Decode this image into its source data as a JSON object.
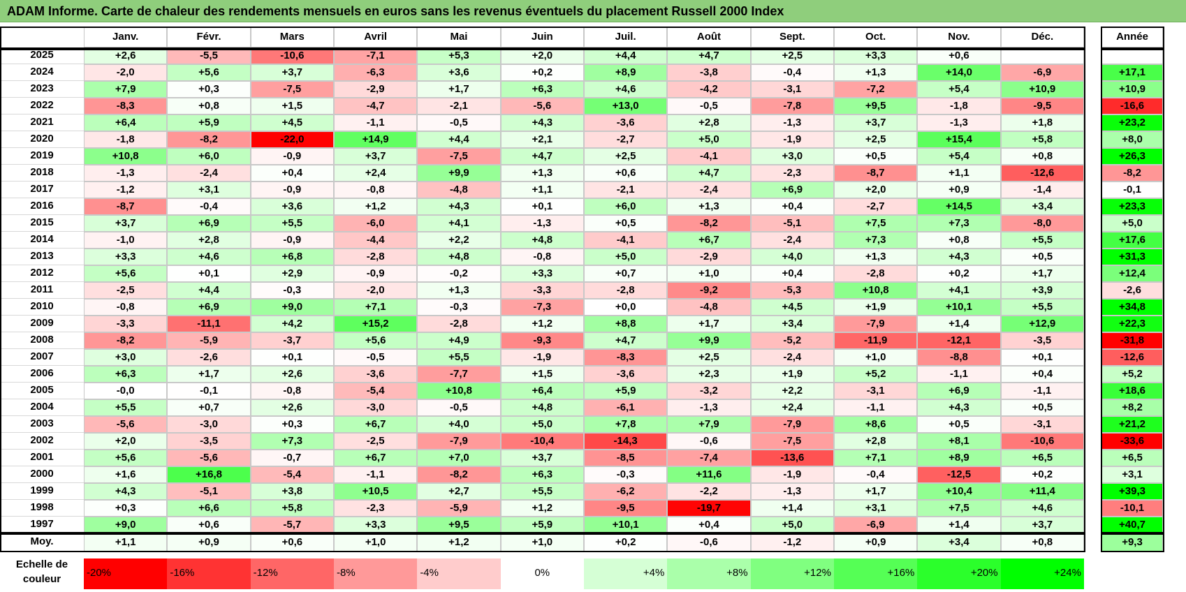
{
  "title": "ADAM Informe. Carte de chaleur des rendements mensuels en euros sans les revenus éventuels du placement Russell 2000 Index",
  "chart_data": {
    "type": "heatmap",
    "title": "ADAM Informe. Carte de chaleur des rendements mensuels en euros sans les revenus éventuels du placement Russell 2000 Index",
    "months": [
      "Janv.",
      "Févr.",
      "Mars",
      "Avril",
      "Mai",
      "Juin",
      "Juil.",
      "Août",
      "Sept.",
      "Oct.",
      "Nov.",
      "Déc."
    ],
    "year_header": "Année",
    "rows": [
      {
        "year": "2025",
        "months": [
          "+2,6",
          "-5,5",
          "-10,6",
          "-7,1",
          "+5,3",
          "+2,0",
          "+4,4",
          "+4,7",
          "+2,5",
          "+3,3",
          "+0,6",
          ""
        ],
        "annual": ""
      },
      {
        "year": "2024",
        "months": [
          "-2,0",
          "+5,6",
          "+3,7",
          "-6,3",
          "+3,6",
          "+0,2",
          "+8,9",
          "-3,8",
          "-0,4",
          "+1,3",
          "+14,0",
          "-6,9"
        ],
        "annual": "+17,1"
      },
      {
        "year": "2023",
        "months": [
          "+7,9",
          "+0,3",
          "-7,5",
          "-2,9",
          "+1,7",
          "+6,3",
          "+4,6",
          "-4,2",
          "-3,1",
          "-7,2",
          "+5,4",
          "+10,9"
        ],
        "annual": "+10,9"
      },
      {
        "year": "2022",
        "months": [
          "-8,3",
          "+0,8",
          "+1,5",
          "-4,7",
          "-2,1",
          "-5,6",
          "+13,0",
          "-0,5",
          "-7,8",
          "+9,5",
          "-1,8",
          "-9,5"
        ],
        "annual": "-16,6"
      },
      {
        "year": "2021",
        "months": [
          "+6,4",
          "+5,9",
          "+4,5",
          "-1,1",
          "-0,5",
          "+4,3",
          "-3,6",
          "+2,8",
          "-1,3",
          "+3,7",
          "-1,3",
          "+1,8"
        ],
        "annual": "+23,2"
      },
      {
        "year": "2020",
        "months": [
          "-1,8",
          "-8,2",
          "-22,0",
          "+14,9",
          "+4,4",
          "+2,1",
          "-2,7",
          "+5,0",
          "-1,9",
          "+2,5",
          "+15,4",
          "+5,8"
        ],
        "annual": "+8,0"
      },
      {
        "year": "2019",
        "months": [
          "+10,8",
          "+6,0",
          "-0,9",
          "+3,7",
          "-7,5",
          "+4,7",
          "+2,5",
          "-4,1",
          "+3,0",
          "+0,5",
          "+5,4",
          "+0,8"
        ],
        "annual": "+26,3"
      },
      {
        "year": "2018",
        "months": [
          "-1,3",
          "-2,4",
          "+0,4",
          "+2,4",
          "+9,9",
          "+1,3",
          "+0,6",
          "+4,7",
          "-2,3",
          "-8,7",
          "+1,1",
          "-12,6"
        ],
        "annual": "-8,2"
      },
      {
        "year": "2017",
        "months": [
          "-1,2",
          "+3,1",
          "-0,9",
          "-0,8",
          "-4,8",
          "+1,1",
          "-2,1",
          "-2,4",
          "+6,9",
          "+2,0",
          "+0,9",
          "-1,4"
        ],
        "annual": "-0,1"
      },
      {
        "year": "2016",
        "months": [
          "-8,7",
          "-0,4",
          "+3,6",
          "+1,2",
          "+4,3",
          "+0,1",
          "+6,0",
          "+1,3",
          "+0,4",
          "-2,7",
          "+14,5",
          "+3,4"
        ],
        "annual": "+23,3"
      },
      {
        "year": "2015",
        "months": [
          "+3,7",
          "+6,9",
          "+5,5",
          "-6,0",
          "+4,1",
          "-1,3",
          "+0,5",
          "-8,2",
          "-5,1",
          "+7,5",
          "+7,3",
          "-8,0"
        ],
        "annual": "+5,0"
      },
      {
        "year": "2014",
        "months": [
          "-1,0",
          "+2,8",
          "-0,9",
          "-4,4",
          "+2,2",
          "+4,8",
          "-4,1",
          "+6,7",
          "-2,4",
          "+7,3",
          "+0,8",
          "+5,5"
        ],
        "annual": "+17,6"
      },
      {
        "year": "2013",
        "months": [
          "+3,3",
          "+4,6",
          "+6,8",
          "-2,8",
          "+4,8",
          "-0,8",
          "+5,0",
          "-2,9",
          "+4,0",
          "+1,3",
          "+4,3",
          "+0,5"
        ],
        "annual": "+31,3"
      },
      {
        "year": "2012",
        "months": [
          "+5,6",
          "+0,1",
          "+2,9",
          "-0,9",
          "-0,2",
          "+3,3",
          "+0,7",
          "+1,0",
          "+0,4",
          "-2,8",
          "+0,2",
          "+1,7"
        ],
        "annual": "+12,4"
      },
      {
        "year": "2011",
        "months": [
          "-2,5",
          "+4,4",
          "-0,3",
          "-2,0",
          "+1,3",
          "-3,3",
          "-2,8",
          "-9,2",
          "-5,3",
          "+10,8",
          "+4,1",
          "+3,9"
        ],
        "annual": "-2,6"
      },
      {
        "year": "2010",
        "months": [
          "-0,8",
          "+6,9",
          "+9,0",
          "+7,1",
          "-0,3",
          "-7,3",
          "+0,0",
          "-4,8",
          "+4,5",
          "+1,9",
          "+10,1",
          "+5,5"
        ],
        "annual": "+34,8"
      },
      {
        "year": "2009",
        "months": [
          "-3,3",
          "-11,1",
          "+4,2",
          "+15,2",
          "-2,8",
          "+1,2",
          "+8,8",
          "+1,7",
          "+3,4",
          "-7,9",
          "+1,4",
          "+12,9"
        ],
        "annual": "+22,3"
      },
      {
        "year": "2008",
        "months": [
          "-8,2",
          "-5,9",
          "-3,7",
          "+5,6",
          "+4,9",
          "-9,3",
          "+4,7",
          "+9,9",
          "-5,2",
          "-11,9",
          "-12,1",
          "-3,5"
        ],
        "annual": "-31,8"
      },
      {
        "year": "2007",
        "months": [
          "+3,0",
          "-2,6",
          "+0,1",
          "-0,5",
          "+5,5",
          "-1,9",
          "-8,3",
          "+2,5",
          "-2,4",
          "+1,0",
          "-8,8",
          "+0,1"
        ],
        "annual": "-12,6"
      },
      {
        "year": "2006",
        "months": [
          "+6,3",
          "+1,7",
          "+2,6",
          "-3,6",
          "-7,7",
          "+1,5",
          "-3,6",
          "+2,3",
          "+1,9",
          "+5,2",
          "-1,1",
          "+0,4"
        ],
        "annual": "+5,2"
      },
      {
        "year": "2005",
        "months": [
          "-0,0",
          "-0,1",
          "-0,8",
          "-5,4",
          "+10,8",
          "+6,4",
          "+5,9",
          "-3,2",
          "+2,2",
          "-3,1",
          "+6,9",
          "-1,1"
        ],
        "annual": "+18,6"
      },
      {
        "year": "2004",
        "months": [
          "+5,5",
          "+0,7",
          "+2,6",
          "-3,0",
          "-0,5",
          "+4,8",
          "-6,1",
          "-1,3",
          "+2,4",
          "-1,1",
          "+4,3",
          "+0,5"
        ],
        "annual": "+8,2"
      },
      {
        "year": "2003",
        "months": [
          "-5,6",
          "-3,0",
          "+0,3",
          "+6,7",
          "+4,0",
          "+5,0",
          "+7,8",
          "+7,9",
          "-7,9",
          "+8,6",
          "+0,5",
          "-3,1"
        ],
        "annual": "+21,2"
      },
      {
        "year": "2002",
        "months": [
          "+2,0",
          "-3,5",
          "+7,3",
          "-2,5",
          "-7,9",
          "-10,4",
          "-14,3",
          "-0,6",
          "-7,5",
          "+2,8",
          "+8,1",
          "-10,6"
        ],
        "annual": "-33,6"
      },
      {
        "year": "2001",
        "months": [
          "+5,6",
          "-5,6",
          "-0,7",
          "+6,7",
          "+7,0",
          "+3,7",
          "-8,5",
          "-7,4",
          "-13,6",
          "+7,1",
          "+8,9",
          "+6,5"
        ],
        "annual": "+6,5"
      },
      {
        "year": "2000",
        "months": [
          "+1,6",
          "+16,8",
          "-5,4",
          "-1,1",
          "-8,2",
          "+6,3",
          "-0,3",
          "+11,6",
          "-1,9",
          "-0,4",
          "-12,5",
          "+0,2"
        ],
        "annual": "+3,1"
      },
      {
        "year": "1999",
        "months": [
          "+4,3",
          "-5,1",
          "+3,8",
          "+10,5",
          "+2,7",
          "+5,5",
          "-6,2",
          "-2,2",
          "-1,3",
          "+1,7",
          "+10,4",
          "+11,4"
        ],
        "annual": "+39,3"
      },
      {
        "year": "1998",
        "months": [
          "+0,3",
          "+6,6",
          "+5,8",
          "-2,3",
          "-5,9",
          "+1,2",
          "-9,5",
          "-19,7",
          "+1,4",
          "+3,1",
          "+7,5",
          "+4,6"
        ],
        "annual": "-10,1"
      },
      {
        "year": "1997",
        "months": [
          "+9,0",
          "+0,6",
          "-5,7",
          "+3,3",
          "+9,5",
          "+5,9",
          "+10,1",
          "+0,4",
          "+5,0",
          "-6,9",
          "+1,4",
          "+3,7"
        ],
        "annual": "+40,7"
      }
    ],
    "average": {
      "label": "Moy.",
      "months": [
        "+1,1",
        "+0,9",
        "+0,6",
        "+1,0",
        "+1,2",
        "+1,0",
        "+0,2",
        "-0,6",
        "-1,2",
        "+0,9",
        "+3,4",
        "+0,8"
      ],
      "annual": "+9,3"
    },
    "scale": {
      "title_line1": "Echelle de",
      "title_line2": "couleur",
      "stops": [
        {
          "label": "-20%",
          "value": -20
        },
        {
          "label": "-16%",
          "value": -16
        },
        {
          "label": "-12%",
          "value": -12
        },
        {
          "label": "-8%",
          "value": -8
        },
        {
          "label": "-4%",
          "value": -4
        },
        {
          "label": "0%",
          "value": 0
        },
        {
          "label": "+4%",
          "value": 4
        },
        {
          "label": "+8%",
          "value": 8
        },
        {
          "label": "+12%",
          "value": 12
        },
        {
          "label": "+16%",
          "value": 16
        },
        {
          "label": "+20%",
          "value": 20
        },
        {
          "label": "+24%",
          "value": 24
        }
      ]
    },
    "colors": {
      "negative_max": "#ff0000",
      "neutral": "#ffffff",
      "positive_max": "#00ff00"
    }
  }
}
